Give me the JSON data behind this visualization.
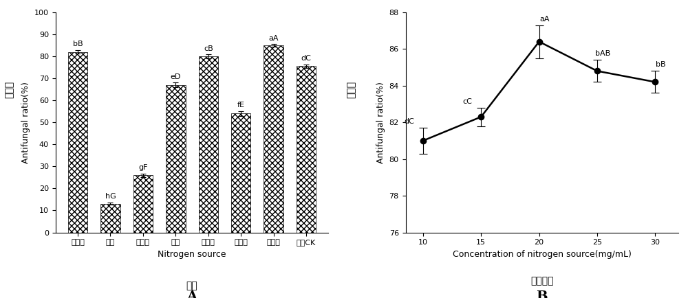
{
  "bar_categories": [
    "黄豆粉",
    "尿素",
    "确酸顰",
    "鱼粉",
    "花生粉",
    "玉米粉",
    "菜籽粉",
    "对照CK"
  ],
  "bar_values": [
    82.0,
    13.0,
    26.0,
    67.0,
    80.0,
    54.0,
    85.0,
    75.5
  ],
  "bar_errors": [
    0.8,
    0.5,
    0.8,
    1.0,
    0.8,
    1.0,
    0.5,
    0.8
  ],
  "bar_labels": [
    "bB",
    "hG",
    "gF",
    "eD",
    "cB",
    "fE",
    "aA",
    "dC"
  ],
  "bar_xlabel_cn": "氮源",
  "bar_xlabel_en": "Nitrogen source",
  "bar_ylabel_cn": "抑菌率",
  "bar_ylabel_en": "Antifungal ratio(%)",
  "bar_ylim": [
    0,
    100
  ],
  "bar_yticks": [
    0,
    10,
    20,
    30,
    40,
    50,
    60,
    70,
    80,
    90,
    100
  ],
  "bar_panel_label": "A",
  "bar_hatch": "xxxx",
  "line_x": [
    10,
    15,
    20,
    25,
    30
  ],
  "line_y": [
    81.0,
    82.3,
    86.4,
    84.8,
    84.2
  ],
  "line_errors": [
    0.7,
    0.5,
    0.9,
    0.6,
    0.6
  ],
  "line_labels": [
    "dC",
    "cC",
    "aA",
    "bAB",
    "bB"
  ],
  "line_xlabel_cn": "氮源浓度",
  "line_xlabel_en": "Concentration of nitrogen source(mg/mL)",
  "line_ylabel_cn": "抑菌率",
  "line_ylabel_en": "Antifungal ratio(%)",
  "line_ylim": [
    76,
    88
  ],
  "line_yticks": [
    76,
    78,
    80,
    82,
    84,
    86,
    88
  ],
  "line_panel_label": "B",
  "line_color": "#000000",
  "background_color": "#ffffff",
  "text_color": "#000000",
  "font_size_label": 9,
  "font_size_tick": 8,
  "font_size_annot": 8,
  "font_size_panel": 14,
  "font_size_cn": 10
}
